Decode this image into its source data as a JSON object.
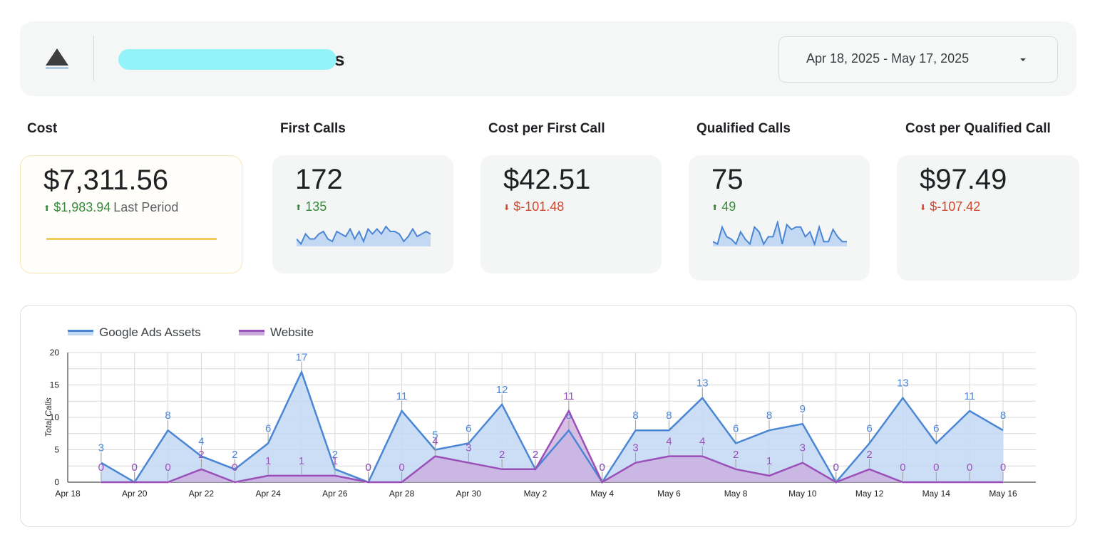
{
  "header": {
    "title_visible": "s",
    "date_range": "Apr 18, 2025 - May 17, 2025",
    "logo_icon": "triangle-logo-icon",
    "caret_icon": "caret-down-icon"
  },
  "kpis": {
    "cost": {
      "label": "Cost",
      "value": "$7,311.56",
      "delta": "$1,983.94",
      "delta_suffix": "Last Period",
      "direction": "up"
    },
    "first_calls": {
      "label": "First Calls",
      "value": "172",
      "delta": "135",
      "direction": "up"
    },
    "cost_per_first_call": {
      "label": "Cost per First Call",
      "value": "$42.51",
      "delta": "$-101.48",
      "direction": "down"
    },
    "qualified_calls": {
      "label": "Qualified Calls",
      "value": "75",
      "delta": "49",
      "direction": "up"
    },
    "cost_per_qualified_call": {
      "label": "Cost per Qualified Call",
      "value": "$97.49",
      "delta": "$-107.42",
      "direction": "down"
    }
  },
  "colors": {
    "google": "#4a86d4",
    "google_fill": "#c3d8f3",
    "website": "#9b4fb8",
    "website_fill": "#c9a9dc",
    "up": "#3a8a3e",
    "down": "#d0492f",
    "cost_line": "#f2cc59"
  },
  "sparklines": {
    "first_calls": [
      3,
      1,
      5,
      3,
      3,
      5,
      6,
      3,
      2,
      6,
      5,
      4,
      7,
      3,
      6,
      2,
      7,
      5,
      7,
      5,
      8,
      6,
      6,
      5,
      2,
      4,
      7,
      4,
      5,
      6,
      5
    ],
    "qualified_calls": [
      2,
      1,
      8,
      4,
      3,
      1,
      6,
      3,
      1,
      8,
      6,
      1,
      4,
      4,
      10,
      1,
      9,
      7,
      8,
      8,
      4,
      6,
      1,
      8,
      2,
      2,
      7,
      4,
      2,
      2
    ]
  },
  "chart_data": {
    "type": "area",
    "ylabel": "Total Calls",
    "ylim": [
      0,
      20
    ],
    "yticks": [
      0,
      5,
      10,
      15,
      20
    ],
    "x_labels": [
      "Apr 18",
      "Apr 20",
      "Apr 22",
      "Apr 24",
      "Apr 26",
      "Apr 28",
      "Apr 30",
      "May 2",
      "May 4",
      "May 6",
      "May 8",
      "May 10",
      "May 12",
      "May 14",
      "May 16"
    ],
    "x": [
      "Apr 19",
      "Apr 20",
      "Apr 21",
      "Apr 22",
      "Apr 23",
      "Apr 24",
      "Apr 25",
      "Apr 26",
      "Apr 27",
      "Apr 28",
      "Apr 29",
      "Apr 30",
      "May 1",
      "May 2",
      "May 3",
      "May 4",
      "May 5",
      "May 6",
      "May 7",
      "May 8",
      "May 9",
      "May 10",
      "May 11",
      "May 12",
      "May 13",
      "May 14",
      "May 15",
      "May 16"
    ],
    "series": [
      {
        "name": "Google Ads Assets",
        "values": [
          3,
          0,
          8,
          4,
          2,
          6,
          17,
          2,
          0,
          11,
          5,
          6,
          12,
          2,
          8,
          0,
          8,
          8,
          13,
          6,
          8,
          9,
          0,
          6,
          13,
          6,
          11,
          8
        ]
      },
      {
        "name": "Website",
        "values": [
          0,
          0,
          0,
          2,
          0,
          1,
          1,
          1,
          0,
          0,
          4,
          3,
          2,
          2,
          11,
          0,
          3,
          4,
          4,
          2,
          1,
          3,
          0,
          2,
          0,
          0,
          0,
          0
        ]
      }
    ],
    "legend_position": "top-left",
    "grid": true
  }
}
